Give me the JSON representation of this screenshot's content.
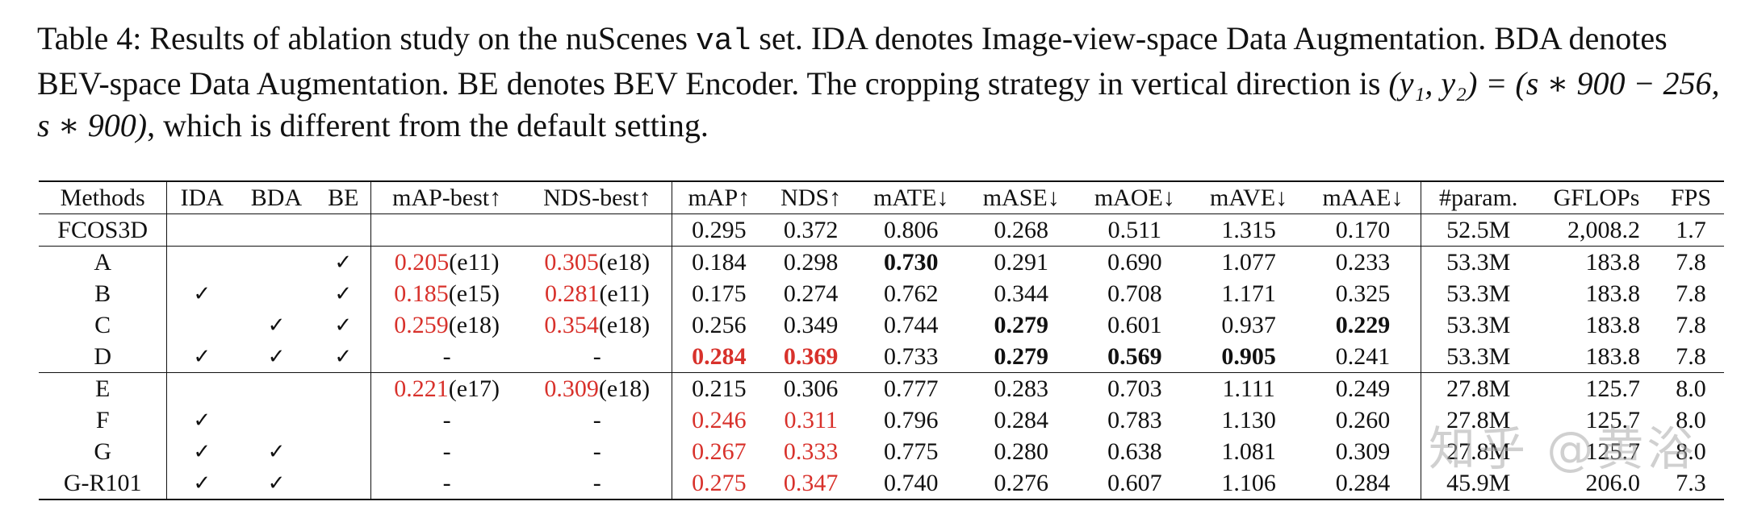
{
  "caption": {
    "part1": "Table 4: Results of ablation study on the nuScenes ",
    "code": "val",
    "part2": " set.  IDA denotes Image-view-space Data Augmentation.  BDA denotes BEV-space Data Augmentation. BE denotes BEV Encoder. The cropping strategy in vertical direction is ",
    "math1": "(y₁, y₂) = (s ∗ 900 − 256, s ∗ 900)",
    "part3": ", which is different from the default setting."
  },
  "table": {
    "headers": [
      "Methods",
      "IDA",
      "BDA",
      "BE",
      "mAP-best↑",
      "NDS-best↑",
      "mAP↑",
      "NDS↑",
      "mATE↓",
      "mASE↓",
      "mAOE↓",
      "mAVE↓",
      "mAAE↓",
      "#param.",
      "GFLOPs",
      "FPS"
    ],
    "rows": [
      {
        "cells": [
          "FCOS3D",
          "",
          "",
          "",
          "",
          "",
          "0.295",
          "0.372",
          "0.806",
          "0.268",
          "0.511",
          "1.315",
          "0.170",
          "52.5M",
          "2,008.2",
          "1.7"
        ]
      },
      {
        "cells": [
          "A",
          "",
          "",
          "✓",
          "0.205|(e11)",
          "0.305|(e18)",
          "0.184",
          "0.298",
          "0.730",
          "0.291",
          "0.690",
          "1.077",
          "0.233",
          "53.3M",
          "183.8",
          "7.8"
        ]
      },
      {
        "cells": [
          "B",
          "✓",
          "",
          "✓",
          "0.185|(e15)",
          "0.281|(e11)",
          "0.175",
          "0.274",
          "0.762",
          "0.344",
          "0.708",
          "1.171",
          "0.325",
          "53.3M",
          "183.8",
          "7.8"
        ]
      },
      {
        "cells": [
          "C",
          "",
          "✓",
          "✓",
          "0.259|(e18)",
          "0.354|(e18)",
          "0.256",
          "0.349",
          "0.744",
          "0.279",
          "0.601",
          "0.937",
          "0.229",
          "53.3M",
          "183.8",
          "7.8"
        ]
      },
      {
        "cells": [
          "D",
          "✓",
          "✓",
          "✓",
          "-",
          "-",
          "0.284",
          "0.369",
          "0.733",
          "0.279",
          "0.569",
          "0.905",
          "0.241",
          "53.3M",
          "183.8",
          "7.8"
        ]
      },
      {
        "cells": [
          "E",
          "",
          "",
          "",
          "0.221|(e17)",
          "0.309|(e18)",
          "0.215",
          "0.306",
          "0.777",
          "0.283",
          "0.703",
          "1.111",
          "0.249",
          "27.8M",
          "125.7",
          "8.0"
        ]
      },
      {
        "cells": [
          "F",
          "✓",
          "",
          "",
          "-",
          "-",
          "0.246",
          "0.311",
          "0.796",
          "0.284",
          "0.783",
          "1.130",
          "0.260",
          "27.8M",
          "125.7",
          "8.0"
        ]
      },
      {
        "cells": [
          "G",
          "✓",
          "✓",
          "",
          "-",
          "-",
          "0.267",
          "0.333",
          "0.775",
          "0.280",
          "0.638",
          "1.081",
          "0.309",
          "27.8M",
          "125.7",
          "8.0"
        ]
      },
      {
        "cells": [
          "G-R101",
          "✓",
          "✓",
          "",
          "-",
          "-",
          "0.275",
          "0.347",
          "0.740",
          "0.276",
          "0.607",
          "1.106",
          "0.284",
          "45.9M",
          "206.0",
          "7.3"
        ]
      }
    ],
    "group_starts": [
      1,
      5
    ],
    "bold": [
      [
        1,
        8
      ],
      [
        3,
        9
      ],
      [
        3,
        12
      ],
      [
        4,
        6
      ],
      [
        4,
        7
      ],
      [
        4,
        9
      ],
      [
        4,
        10
      ],
      [
        4,
        11
      ]
    ],
    "red": [
      [
        1,
        4
      ],
      [
        1,
        5
      ],
      [
        2,
        4
      ],
      [
        2,
        5
      ],
      [
        3,
        4
      ],
      [
        3,
        5
      ],
      [
        4,
        6
      ],
      [
        4,
        7
      ],
      [
        5,
        4
      ],
      [
        5,
        5
      ],
      [
        6,
        6
      ],
      [
        6,
        7
      ],
      [
        7,
        6
      ],
      [
        7,
        7
      ],
      [
        8,
        6
      ],
      [
        8,
        7
      ]
    ],
    "red_color": "#d8312b"
  },
  "watermark": "知乎 @黄浴"
}
